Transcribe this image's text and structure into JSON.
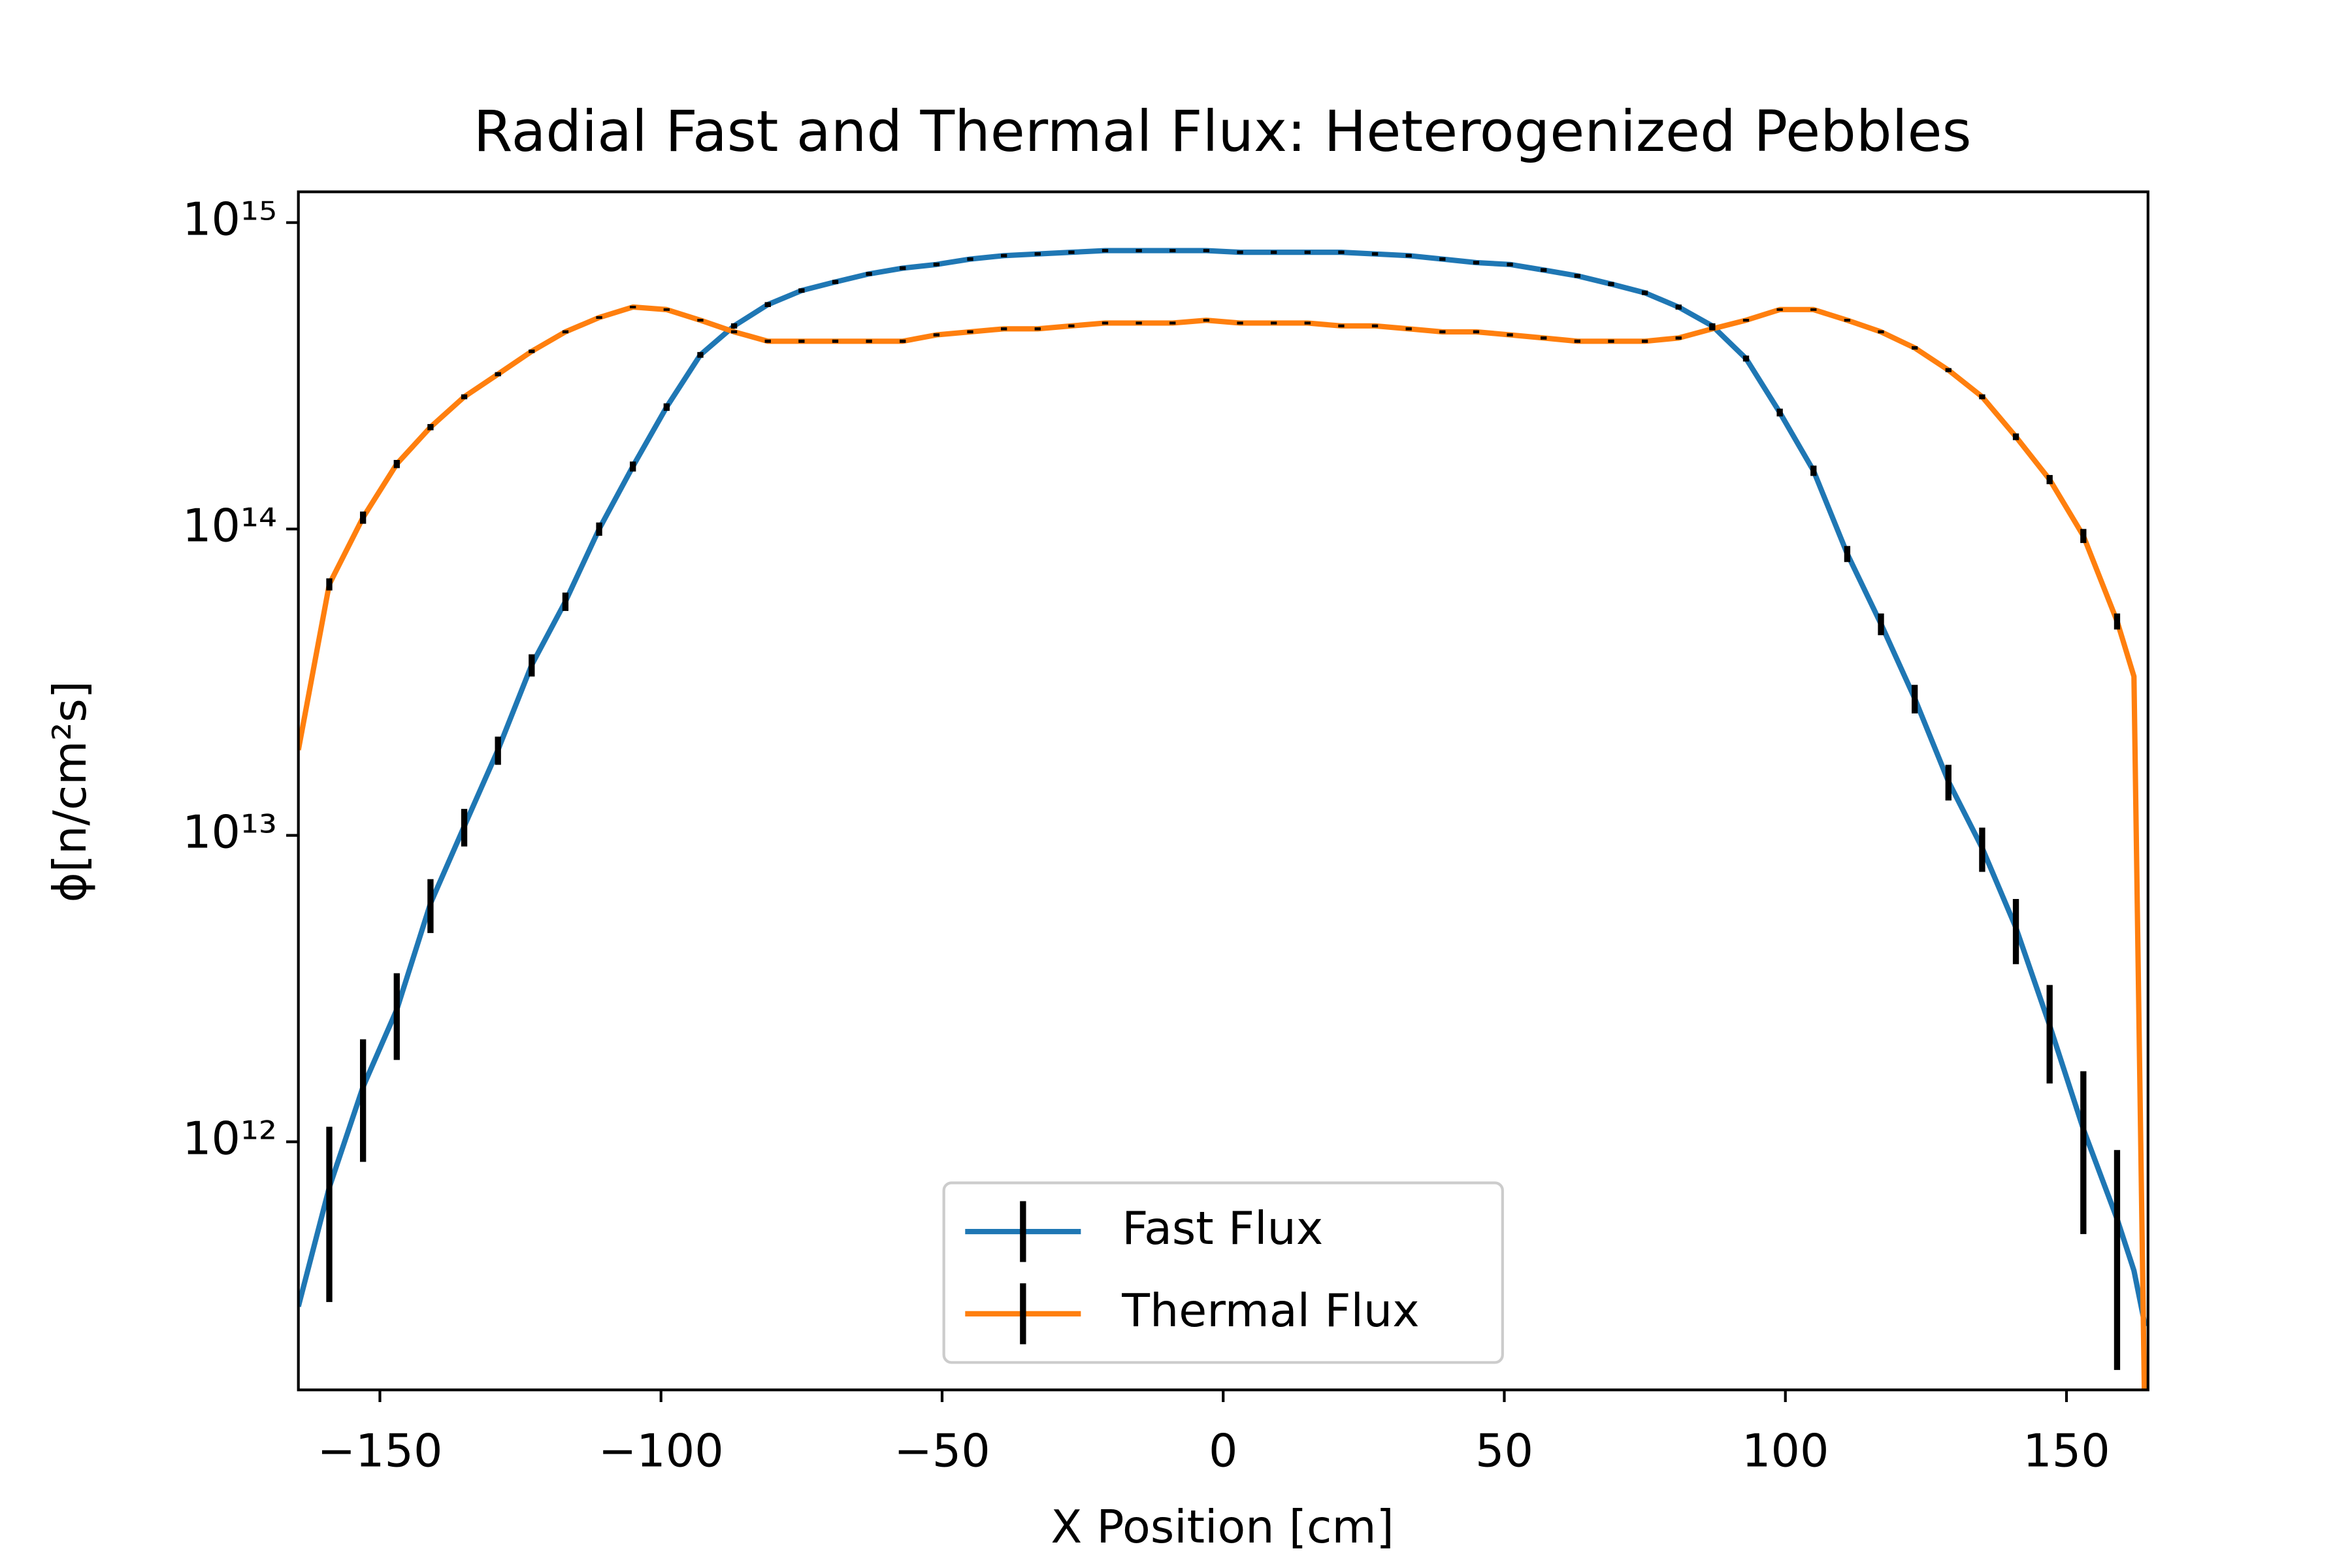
{
  "chart_data": {
    "type": "line",
    "title": "Radial Fast and Thermal Flux: Heterogenized Pebbles",
    "x_label": "X Position [cm]",
    "y_label": "ϕ[n/cm²s]",
    "x": [
      -164.5,
      -159,
      -153,
      -147,
      -141,
      -135,
      -129,
      -123,
      -117,
      -111,
      -105,
      -99,
      -93,
      -87,
      -81,
      -75,
      -69,
      -63,
      -57,
      -51,
      -45,
      -39,
      -33,
      -27,
      -21,
      -15,
      -9,
      -3,
      3,
      9,
      15,
      21,
      27,
      33,
      39,
      45,
      51,
      57,
      63,
      69,
      75,
      81,
      87,
      93,
      99,
      105,
      111,
      117,
      123,
      129,
      135,
      141,
      147,
      153,
      159,
      162,
      164
    ],
    "series": [
      {
        "name": "Fast Flux",
        "color": "#1f77b4",
        "values": [
          290000000000.0,
          710000000000.0,
          1510000000000.0,
          2700000000000.0,
          6000000000000.0,
          10700000000000.0,
          19000000000000.0,
          36000000000000.0,
          58000000000000.0,
          100000000000000.0,
          160000000000000.0,
          250000000000000.0,
          370000000000000.0,
          460000000000000.0,
          540000000000000.0,
          600000000000000.0,
          640000000000000.0,
          680000000000000.0,
          710000000000000.0,
          730000000000000.0,
          760000000000000.0,
          780000000000000.0,
          790000000000000.0,
          800000000000000.0,
          810000000000000.0,
          810000000000000.0,
          810000000000000.0,
          810000000000000.0,
          800000000000000.0,
          800000000000000.0,
          800000000000000.0,
          800000000000000.0,
          790000000000000.0,
          780000000000000.0,
          760000000000000.0,
          740000000000000.0,
          730000000000000.0,
          700000000000000.0,
          670000000000000.0,
          630000000000000.0,
          590000000000000.0,
          530000000000000.0,
          460000000000000.0,
          360000000000000.0,
          240000000000000.0,
          155000000000000.0,
          83000000000000.0,
          49000000000000.0,
          28000000000000.0,
          15000000000000.0,
          9100000000000.0,
          5000000000000.0,
          2400000000000.0,
          1100000000000.0,
          560000000000.0,
          380000000000.0,
          250000000000.0
        ],
        "errors": [
          null,
          410000000000.0,
          650000000000.0,
          850000000000.0,
          1200000000000.0,
          1500000000000.0,
          2000000000000.0,
          3000000000000.0,
          4000000000000.0,
          5000000000000.0,
          6000000000000.0,
          7000000000000.0,
          8000000000000.0,
          9000000000000.0,
          10000000000000.0,
          10000000000000.0,
          10000000000000.0,
          10000000000000.0,
          10000000000000.0,
          10000000000000.0,
          10000000000000.0,
          10000000000000.0,
          10000000000000.0,
          10000000000000.0,
          10000000000000.0,
          10000000000000.0,
          10000000000000.0,
          10000000000000.0,
          10000000000000.0,
          10000000000000.0,
          10000000000000.0,
          10000000000000.0,
          10000000000000.0,
          10000000000000.0,
          10000000000000.0,
          10000000000000.0,
          10000000000000.0,
          10000000000000.0,
          10000000000000.0,
          10000000000000.0,
          10000000000000.0,
          10000000000000.0,
          9000000000000.0,
          8000000000000.0,
          7000000000000.0,
          6000000000000.0,
          5000000000000.0,
          4000000000000.0,
          3000000000000.0,
          2000000000000.0,
          1500000000000.0,
          1200000000000.0,
          850000000000.0,
          600000000000.0,
          380000000000.0,
          null,
          null
        ]
      },
      {
        "name": "Thermal Flux",
        "color": "#ff7f0e",
        "values": [
          19000000000000.0,
          66000000000000.0,
          109000000000000.0,
          163000000000000.0,
          215000000000000.0,
          270000000000000.0,
          320000000000000.0,
          380000000000000.0,
          440000000000000.0,
          490000000000000.0,
          530000000000000.0,
          520000000000000.0,
          480000000000000.0,
          440000000000000.0,
          410000000000000.0,
          410000000000000.0,
          410000000000000.0,
          410000000000000.0,
          410000000000000.0,
          430000000000000.0,
          440000000000000.0,
          450000000000000.0,
          450000000000000.0,
          460000000000000.0,
          470000000000000.0,
          470000000000000.0,
          470000000000000.0,
          480000000000000.0,
          470000000000000.0,
          470000000000000.0,
          470000000000000.0,
          460000000000000.0,
          460000000000000.0,
          450000000000000.0,
          440000000000000.0,
          440000000000000.0,
          430000000000000.0,
          420000000000000.0,
          410000000000000.0,
          410000000000000.0,
          410000000000000.0,
          420000000000000.0,
          450000000000000.0,
          480000000000000.0,
          520000000000000.0,
          520000000000000.0,
          480000000000000.0,
          440000000000000.0,
          390000000000000.0,
          330000000000000.0,
          270000000000000.0,
          200000000000000.0,
          145000000000000.0,
          95000000000000.0,
          50000000000000.0,
          33000000000000.0,
          100000000000.0
        ],
        "errors": [
          null,
          3000000000000.0,
          5000000000000.0,
          5000000000000.0,
          5000000000000.0,
          5000000000000.0,
          5000000000000.0,
          5000000000000.0,
          5000000000000.0,
          5000000000000.0,
          5000000000000.0,
          5000000000000.0,
          5000000000000.0,
          5000000000000.0,
          5000000000000.0,
          5000000000000.0,
          5000000000000.0,
          5000000000000.0,
          5000000000000.0,
          5000000000000.0,
          5000000000000.0,
          5000000000000.0,
          5000000000000.0,
          5000000000000.0,
          5000000000000.0,
          5000000000000.0,
          5000000000000.0,
          5000000000000.0,
          5000000000000.0,
          5000000000000.0,
          5000000000000.0,
          5000000000000.0,
          5000000000000.0,
          5000000000000.0,
          5000000000000.0,
          5000000000000.0,
          5000000000000.0,
          5000000000000.0,
          5000000000000.0,
          5000000000000.0,
          5000000000000.0,
          5000000000000.0,
          5000000000000.0,
          5000000000000.0,
          5000000000000.0,
          5000000000000.0,
          5000000000000.0,
          5000000000000.0,
          5000000000000.0,
          5000000000000.0,
          5000000000000.0,
          5000000000000.0,
          5000000000000.0,
          5000000000000.0,
          3000000000000.0,
          null,
          null
        ]
      }
    ],
    "error_color": "#000000",
    "xlim": [
      -164.5,
      164.5
    ],
    "xticks": [
      {
        "value": -150,
        "label": "−150"
      },
      {
        "value": -100,
        "label": "−100"
      },
      {
        "value": -50,
        "label": "−50"
      },
      0,
      50,
      100,
      150
    ],
    "ylim": [
      155000000000.0,
      1260000000000000.0
    ],
    "y_scale": "log",
    "yticks": [
      {
        "value": 1000000000000.0,
        "label": "10¹²"
      },
      {
        "value": 10000000000000.0,
        "label": "10¹³"
      },
      {
        "value": 100000000000000.0,
        "label": "10¹⁴"
      },
      {
        "value": 1000000000000000.0,
        "label": "10¹⁵"
      }
    ],
    "grid": false,
    "legend": "lower center"
  }
}
